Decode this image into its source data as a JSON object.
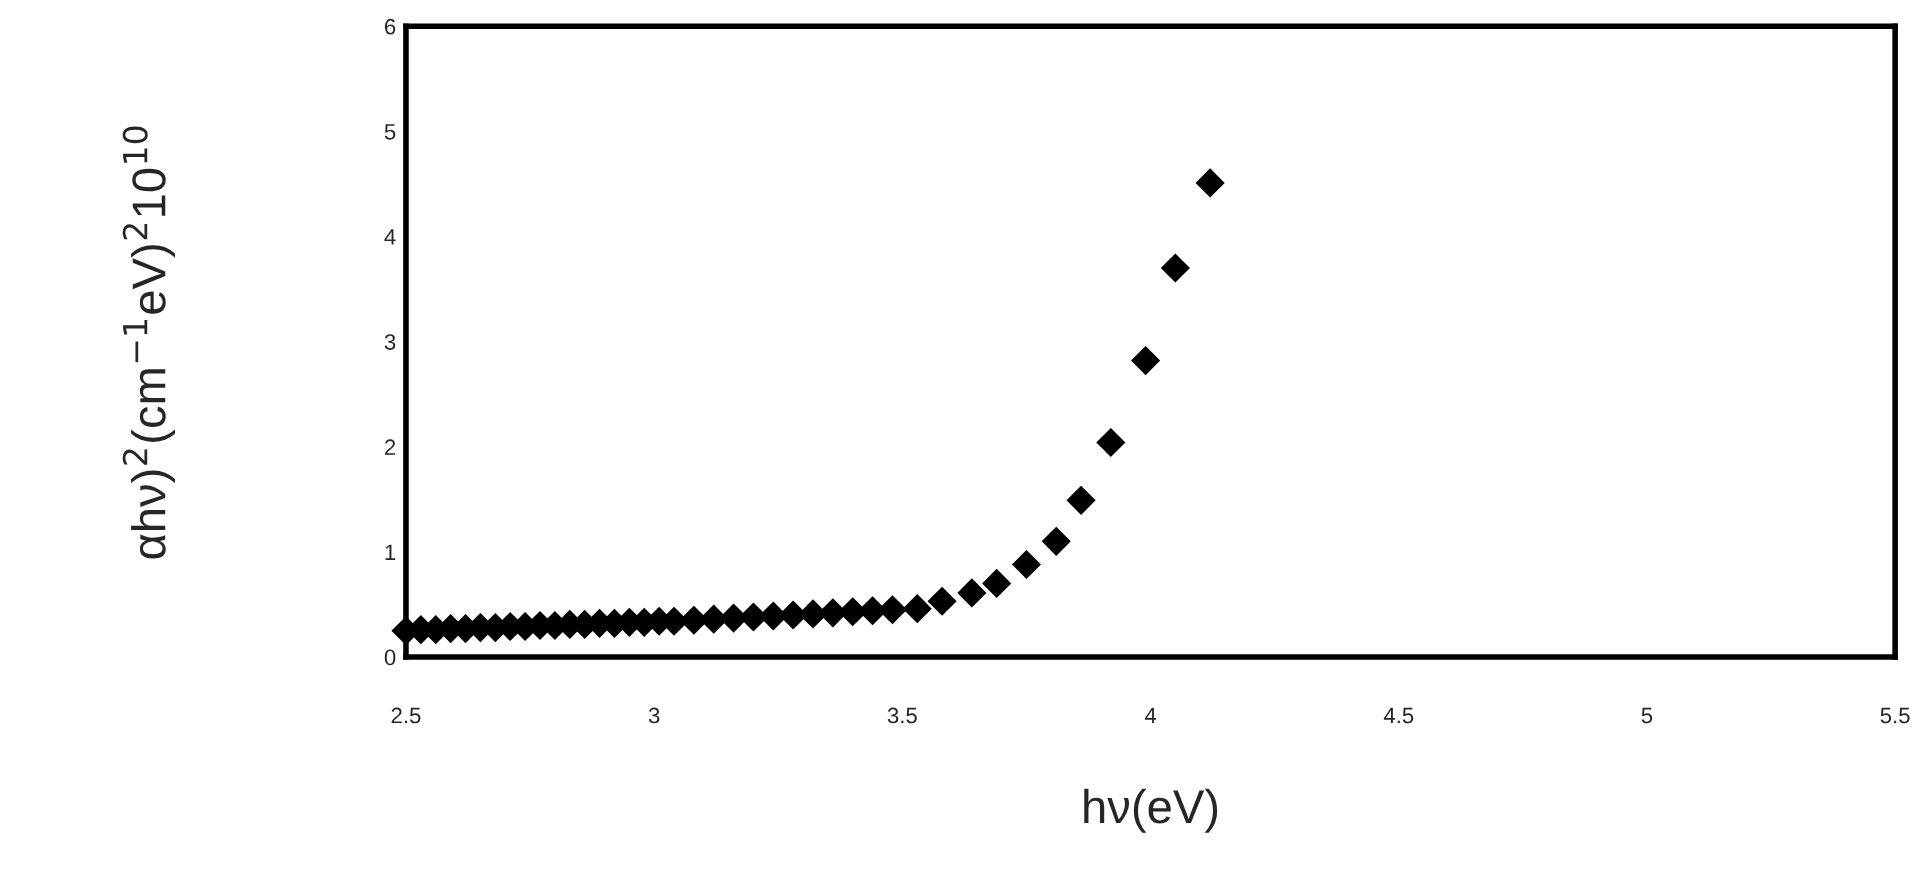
{
  "chart_data": {
    "type": "scatter",
    "xlabel": "hν(eV)",
    "ylabel": "αhν)$^{2}$(cm$^{−1}$eV)$^{2}$10$^{10}$",
    "x": [
      2.5,
      2.53,
      2.56,
      2.59,
      2.62,
      2.65,
      2.68,
      2.71,
      2.74,
      2.77,
      2.8,
      2.83,
      2.86,
      2.89,
      2.92,
      2.95,
      2.98,
      3.01,
      3.04,
      3.08,
      3.12,
      3.16,
      3.2,
      3.24,
      3.28,
      3.32,
      3.36,
      3.4,
      3.44,
      3.48,
      3.53,
      3.58,
      3.64,
      3.69,
      3.75,
      3.81,
      3.86,
      3.92,
      3.99,
      4.05,
      4.12
    ],
    "series": [
      {
        "color": "#000000",
        "values": [
          0.25,
          0.26,
          0.26,
          0.27,
          0.27,
          0.28,
          0.28,
          0.29,
          0.29,
          0.3,
          0.3,
          0.31,
          0.31,
          0.32,
          0.32,
          0.33,
          0.33,
          0.34,
          0.34,
          0.35,
          0.36,
          0.37,
          0.38,
          0.39,
          0.4,
          0.41,
          0.42,
          0.43,
          0.44,
          0.45,
          0.46,
          0.53,
          0.61,
          0.7,
          0.88,
          1.1,
          1.49,
          2.04,
          2.82,
          3.7,
          4.51
        ]
      }
    ],
    "marker": "diamond",
    "xlim": [
      2.5,
      5.5
    ],
    "ylim": [
      0,
      6
    ],
    "xticks": [
      2.5,
      3,
      3.5,
      4,
      4.5,
      5,
      5.5
    ],
    "yticks": [
      0,
      1,
      2,
      3,
      4,
      5,
      6
    ],
    "grid": false
  }
}
